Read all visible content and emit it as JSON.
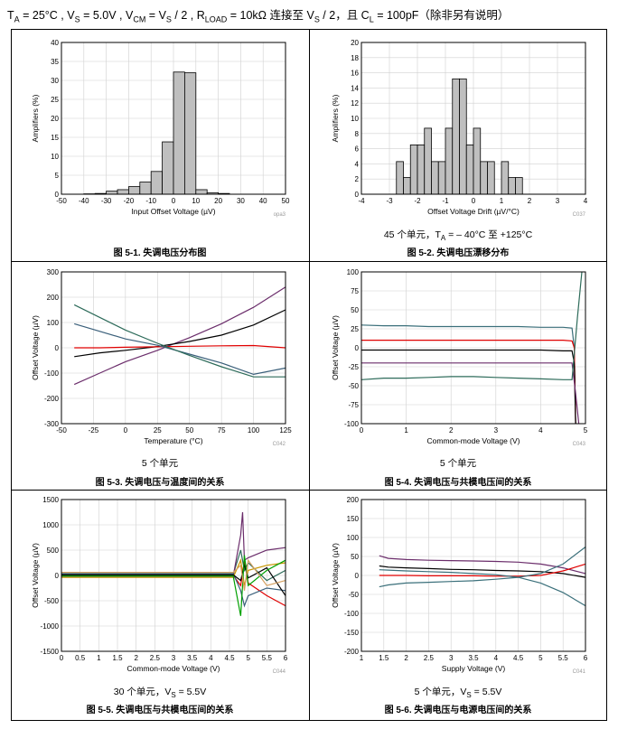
{
  "header": {
    "t_a": "T",
    "t_a_sub": "A",
    "t_a_val": " = 25°C , V",
    "vs_sub": "S",
    "vs_val": " = 5.0V , V",
    "vcm_sub": "CM",
    "vcm_val": " = V",
    "vcm_sub2": "S",
    "vcm_val2": " / 2 , R",
    "rl_sub": "LOAD",
    "rl_val": " = 10kΩ 连接至 V",
    "rl_sub2": "S",
    "rl_val2": " / 2，且 C",
    "cl_sub": "L",
    "cl_val": " = 100pF（除非另有说明）"
  },
  "panels": [
    {
      "caption": "图 5-1. 失调电压分布图",
      "note": ""
    },
    {
      "caption": "图 5-2. 失调电压漂移分布",
      "note_pre": "45 个单元，T",
      "note_sub": "A",
      "note_post": " = – 40°C 至 +125°C"
    },
    {
      "caption": "图 5-3. 失调电压与温度间的关系",
      "note": "5 个单元"
    },
    {
      "caption": "图 5-4. 失调电压与共模电压间的关系",
      "note": "5 个单元"
    },
    {
      "caption": "图 5-5. 失调电压与共模电压间的关系",
      "note_pre": "30 个单元，V",
      "note_sub": "S",
      "note_post": " = 5.5V"
    },
    {
      "caption": "图 5-6. 失调电压与电源电压间的关系",
      "note_pre": "5 个单元，V",
      "note_sub": "S",
      "note_post": " = 5.5V"
    }
  ],
  "chart_data": [
    {
      "id": "c1",
      "type": "bar",
      "code": "opa3",
      "xlabel": "Input Offset Voltage (µV)",
      "ylabel": "Amplifiers (%)",
      "xlim": [
        -50,
        50
      ],
      "ylim": [
        0,
        40
      ],
      "xticks": [
        -50,
        -40,
        -30,
        -20,
        -10,
        0,
        10,
        20,
        30,
        40,
        50
      ],
      "yticks": [
        0,
        5,
        10,
        15,
        20,
        25,
        30,
        35,
        40
      ],
      "bin_width": 5,
      "bins": [
        -50,
        -45,
        -40,
        -35,
        -30,
        -25,
        -20,
        -15,
        -10,
        -5,
        0,
        5,
        10,
        15,
        20,
        25,
        30,
        35,
        40,
        45
      ],
      "values": [
        0,
        0,
        0.1,
        0.2,
        0.8,
        1.2,
        2.0,
        3.2,
        6.0,
        13.8,
        32.2,
        32.0,
        1.2,
        0.4,
        0.2,
        0,
        0,
        0,
        0,
        0
      ],
      "grid": true
    },
    {
      "id": "c2",
      "type": "bar",
      "code": "C037",
      "xlabel": "Offset Voltage Drift (µV/°C)",
      "ylabel": "Amplifiers (%)",
      "xlim": [
        -4,
        4
      ],
      "ylim": [
        0,
        20
      ],
      "xticks": [
        -4,
        -3,
        -2,
        -1,
        0,
        1,
        2,
        3,
        4
      ],
      "yticks": [
        0,
        2,
        4,
        6,
        8,
        10,
        12,
        14,
        16,
        18,
        20
      ],
      "bin_width": 0.25,
      "bins": [
        -2.75,
        -2.5,
        -2.25,
        -2.0,
        -1.75,
        -1.5,
        -1.25,
        -1.0,
        -0.75,
        -0.5,
        -0.25,
        0,
        0.25,
        0.5,
        0.75,
        1.0,
        1.25,
        1.5,
        1.75,
        2.0,
        2.25
      ],
      "values": [
        4.3,
        2.2,
        6.5,
        6.5,
        8.7,
        4.3,
        4.3,
        8.7,
        15.2,
        15.2,
        6.5,
        8.7,
        4.3,
        4.3,
        0,
        4.3,
        2.2,
        2.2,
        0,
        0,
        0
      ],
      "grid": true
    },
    {
      "id": "c3",
      "type": "line",
      "code": "C042",
      "xlabel": "Temperature (°C)",
      "ylabel": "Offset Voltage (µV)",
      "xlim": [
        -50,
        125
      ],
      "ylim": [
        -300,
        300
      ],
      "xticks": [
        -50,
        -25,
        0,
        25,
        50,
        75,
        100,
        125
      ],
      "yticks": [
        -300,
        -200,
        -100,
        0,
        100,
        200,
        300
      ],
      "series": [
        {
          "color": "#6b2d6b",
          "x": [
            -40,
            -20,
            0,
            25,
            50,
            75,
            100,
            125
          ],
          "y": [
            -145,
            -100,
            -55,
            -10,
            40,
            95,
            160,
            240
          ]
        },
        {
          "color": "#000000",
          "x": [
            -40,
            -20,
            0,
            25,
            50,
            75,
            100,
            125
          ],
          "y": [
            -35,
            -20,
            -10,
            5,
            25,
            50,
            90,
            150
          ]
        },
        {
          "color": "#e00000",
          "x": [
            -40,
            -20,
            0,
            25,
            50,
            75,
            100,
            125
          ],
          "y": [
            0,
            0,
            2,
            4,
            6,
            8,
            9,
            0
          ]
        },
        {
          "color": "#3a5f7a",
          "x": [
            -40,
            -20,
            0,
            25,
            50,
            75,
            100,
            125
          ],
          "y": [
            95,
            65,
            35,
            10,
            -25,
            -60,
            -105,
            -80
          ]
        },
        {
          "color": "#2d6b5a",
          "x": [
            -40,
            -20,
            0,
            25,
            50,
            75,
            100,
            125
          ],
          "y": [
            170,
            120,
            70,
            18,
            -30,
            -75,
            -115,
            -115
          ]
        }
      ],
      "grid": true
    },
    {
      "id": "c4",
      "type": "line",
      "code": "C043",
      "xlabel": "Common-mode Voltage (V)",
      "ylabel": "Offset Voltage (µV)",
      "xlim": [
        0,
        5
      ],
      "ylim": [
        -100,
        100
      ],
      "xticks": [
        0,
        1,
        2,
        3,
        4,
        5
      ],
      "yticks": [
        -100,
        -75,
        -50,
        -25,
        0,
        25,
        50,
        75,
        100
      ],
      "series": [
        {
          "color": "#3a6f7a",
          "x": [
            0,
            0.5,
            1,
            1.5,
            2,
            2.5,
            3,
            3.5,
            4,
            4.5,
            4.7,
            4.75,
            4.78
          ],
          "y": [
            30,
            29,
            29,
            28,
            28,
            28,
            28,
            28,
            27,
            27,
            26,
            0,
            -100
          ]
        },
        {
          "color": "#e00000",
          "x": [
            0,
            0.5,
            1,
            1.5,
            2,
            2.5,
            3,
            3.5,
            4,
            4.5,
            4.7,
            4.75,
            4.78
          ],
          "y": [
            10,
            10,
            10,
            10,
            10,
            10,
            10,
            10,
            10,
            10,
            9,
            0,
            -100
          ]
        },
        {
          "color": "#000000",
          "x": [
            0,
            0.5,
            1,
            1.5,
            2,
            2.5,
            3,
            3.5,
            4,
            4.5,
            4.7,
            4.75,
            4.78
          ],
          "y": [
            -3,
            -3,
            -3,
            -3,
            -3,
            -3,
            -3,
            -3,
            -3,
            -4,
            -4,
            -20,
            -100
          ]
        },
        {
          "color": "#6b2d6b",
          "x": [
            0,
            0.5,
            1,
            1.5,
            2,
            2.5,
            3,
            3.5,
            4,
            4.5,
            4.7,
            4.78,
            4.85
          ],
          "y": [
            -20,
            -20,
            -20,
            -20,
            -20,
            -20,
            -20,
            -20,
            -20,
            -20,
            -20,
            -60,
            -100
          ]
        },
        {
          "color": "#2d6b5a",
          "x": [
            0,
            0.5,
            1,
            1.5,
            2,
            2.5,
            3,
            3.5,
            4,
            4.5,
            4.7,
            4.82,
            4.92
          ],
          "y": [
            -42,
            -40,
            -40,
            -39,
            -38,
            -38,
            -39,
            -40,
            -41,
            -42,
            -42,
            40,
            100
          ]
        }
      ],
      "grid": true
    },
    {
      "id": "c5",
      "type": "line",
      "code": "C044",
      "xlabel": "Common-mode Voltage (V)",
      "ylabel": "Offset Voltage (µV)",
      "xlim": [
        0,
        6
      ],
      "ylim": [
        -1500,
        1500
      ],
      "xticks": [
        0,
        0.5,
        1,
        1.5,
        2,
        2.5,
        3,
        3.5,
        4,
        4.5,
        5,
        5.5,
        6
      ],
      "yticks": [
        -1500,
        -1000,
        -500,
        0,
        500,
        1000,
        1500
      ],
      "series": [
        {
          "color": "#e00000",
          "x": [
            0,
            1,
            2,
            3,
            4,
            4.6,
            4.8,
            4.9,
            5,
            5.5,
            6
          ],
          "y": [
            0,
            0,
            0,
            0,
            0,
            0,
            -200,
            300,
            -150,
            -400,
            -600
          ]
        },
        {
          "color": "#2d6b5a",
          "x": [
            0,
            1,
            2,
            3,
            4,
            4.6,
            4.8,
            4.9,
            5,
            5.5,
            6
          ],
          "y": [
            20,
            20,
            20,
            20,
            20,
            20,
            500,
            100,
            250,
            -100,
            100
          ]
        },
        {
          "color": "#6b2d6b",
          "x": [
            0,
            1,
            2,
            3,
            4,
            4.6,
            4.8,
            4.85,
            4.9,
            5,
            5.5,
            6
          ],
          "y": [
            -20,
            -20,
            -20,
            -20,
            -20,
            -20,
            800,
            1250,
            300,
            350,
            500,
            550
          ]
        },
        {
          "color": "#3a5f7a",
          "x": [
            0,
            1,
            2,
            3,
            4,
            4.6,
            4.8,
            4.9,
            5,
            5.5,
            6
          ],
          "y": [
            40,
            40,
            40,
            40,
            40,
            40,
            -300,
            -600,
            -400,
            -250,
            -300
          ]
        },
        {
          "color": "#c89600",
          "x": [
            0,
            1,
            2,
            3,
            4,
            4.6,
            4.8,
            4.9,
            5,
            5.5,
            6
          ],
          "y": [
            -40,
            -40,
            -40,
            -40,
            -40,
            -40,
            300,
            -200,
            100,
            200,
            250
          ]
        },
        {
          "color": "#000000",
          "x": [
            0,
            1,
            2,
            3,
            4,
            4.6,
            4.8,
            4.9,
            5,
            5.5,
            6
          ],
          "y": [
            10,
            10,
            10,
            10,
            10,
            10,
            -100,
            200,
            -50,
            150,
            -400
          ]
        },
        {
          "color": "#00a000",
          "x": [
            0,
            1,
            2,
            3,
            4,
            4.6,
            4.8,
            4.9,
            5,
            5.5,
            6
          ],
          "y": [
            -10,
            -10,
            -10,
            -10,
            -10,
            -10,
            -800,
            400,
            -200,
            100,
            300
          ]
        },
        {
          "color": "#d4a060",
          "x": [
            0,
            1,
            2,
            3,
            4,
            4.6,
            4.8,
            4.9,
            5,
            5.5,
            6
          ],
          "y": [
            60,
            60,
            60,
            60,
            60,
            60,
            200,
            -300,
            300,
            -200,
            -100
          ]
        }
      ],
      "grid": true
    },
    {
      "id": "c6",
      "type": "line",
      "code": "C041",
      "xlabel": "Supply Voltage (V)",
      "ylabel": "Offset Voltage (µV)",
      "xlim": [
        1,
        6
      ],
      "ylim": [
        -200,
        200
      ],
      "xticks": [
        1,
        1.5,
        2,
        2.5,
        3,
        3.5,
        4,
        4.5,
        5,
        5.5,
        6
      ],
      "yticks": [
        -200,
        -150,
        -100,
        -50,
        0,
        50,
        100,
        150,
        200
      ],
      "series": [
        {
          "color": "#6b2d6b",
          "x": [
            1.4,
            1.6,
            2,
            2.5,
            3,
            3.5,
            4,
            4.5,
            5,
            5.5,
            6
          ],
          "y": [
            52,
            45,
            42,
            40,
            39,
            38,
            37,
            35,
            30,
            20,
            5
          ]
        },
        {
          "color": "#000000",
          "x": [
            1.4,
            1.6,
            2,
            2.5,
            3,
            3.5,
            4,
            4.5,
            5,
            5.5,
            6
          ],
          "y": [
            25,
            22,
            20,
            18,
            16,
            15,
            13,
            12,
            10,
            5,
            -5
          ]
        },
        {
          "color": "#e00000",
          "x": [
            1.4,
            1.6,
            2,
            2.5,
            3,
            3.5,
            4,
            4.5,
            5,
            5.5,
            6
          ],
          "y": [
            0,
            0,
            0,
            -1,
            -1,
            -1,
            -2,
            -2,
            0,
            12,
            30
          ]
        },
        {
          "color": "#3a6f7a",
          "x": [
            1.4,
            1.6,
            2,
            2.5,
            3,
            3.5,
            4,
            4.5,
            5,
            5.5,
            6
          ],
          "y": [
            15,
            14,
            12,
            10,
            8,
            5,
            2,
            -5,
            -20,
            -45,
            -80
          ]
        },
        {
          "color": "#3a6f7a",
          "x": [
            1.4,
            1.6,
            2,
            2.5,
            3,
            3.5,
            4,
            4.5,
            5,
            5.5,
            6
          ],
          "y": [
            -30,
            -25,
            -20,
            -18,
            -16,
            -14,
            -10,
            -5,
            5,
            30,
            75
          ]
        }
      ],
      "grid": true
    }
  ]
}
